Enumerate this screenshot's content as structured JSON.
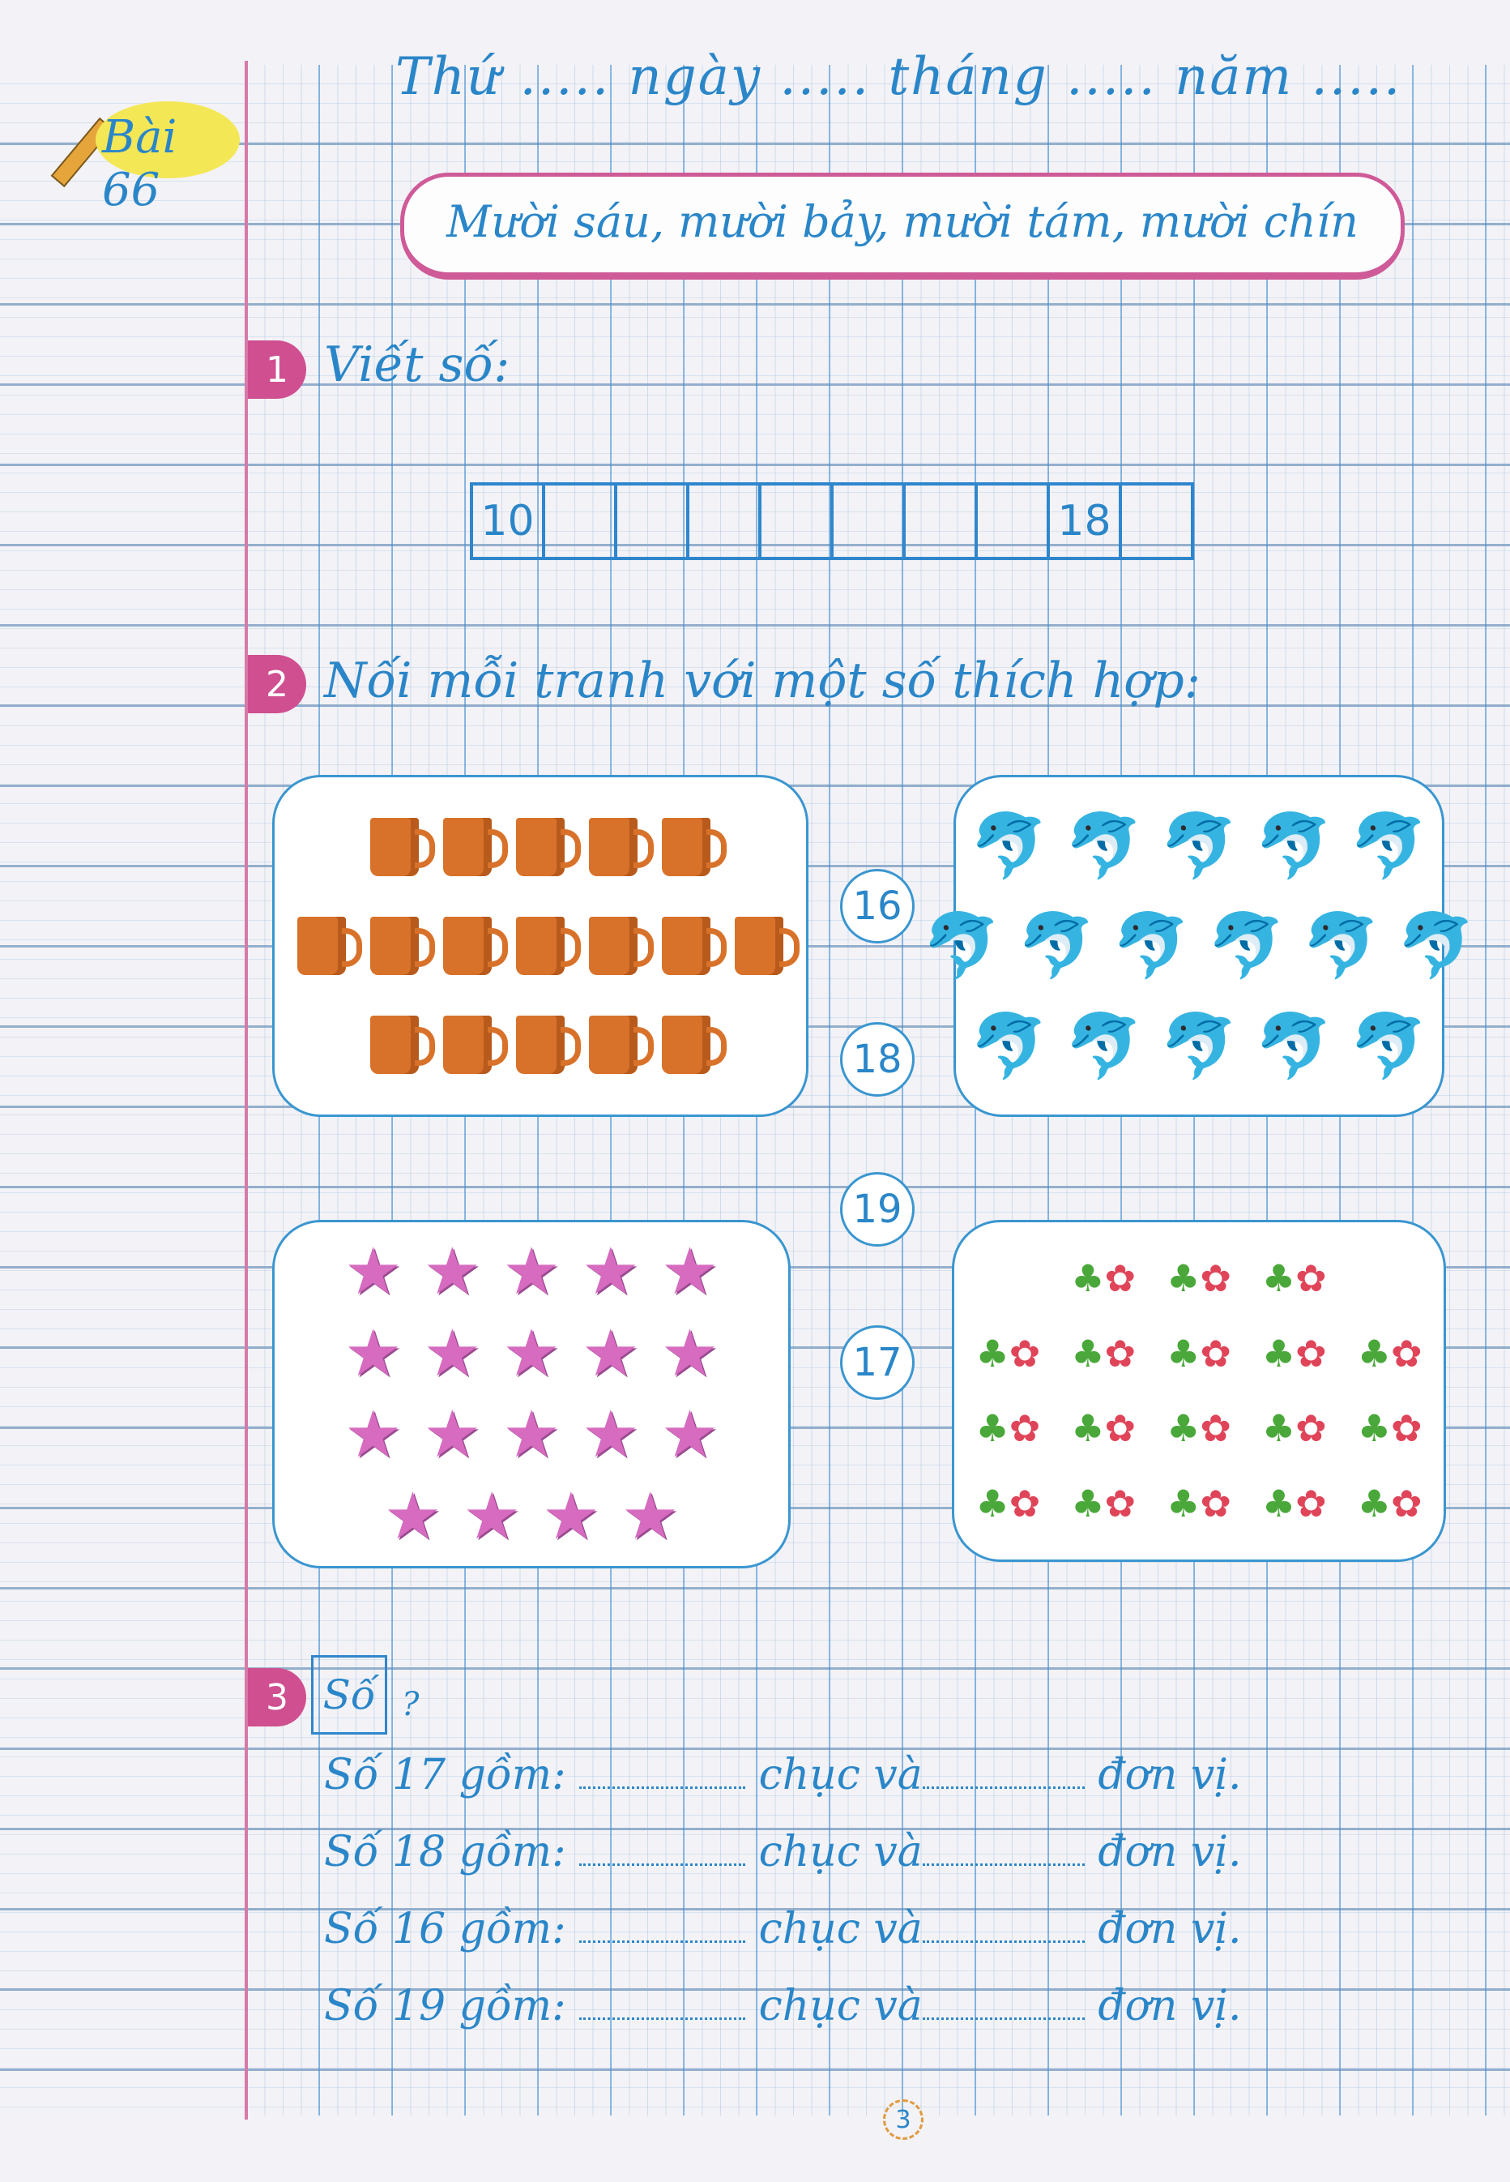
{
  "header": {
    "date_line": "Thứ ..... ngày ..... tháng ..... năm ....."
  },
  "lesson": {
    "badge": "Bài 66",
    "title": "Mười sáu, mười bảy, mười tám, mười chín"
  },
  "exercise1": {
    "number": "1",
    "instruction": "Viết số:",
    "cells": [
      "10",
      "",
      "",
      "",
      "",
      "",
      "",
      "",
      "18",
      ""
    ]
  },
  "exercise2": {
    "number": "2",
    "instruction": "Nối mỗi tranh với một số thích hợp:",
    "pictures": [
      {
        "icon": "mug-icon",
        "rows": [
          5,
          7,
          5
        ]
      },
      {
        "icon": "dolphin-icon",
        "rows": [
          5,
          6,
          5
        ]
      },
      {
        "icon": "star-icon",
        "rows": [
          5,
          5,
          5,
          4
        ]
      },
      {
        "icon": "flower-icon",
        "rows": [
          3,
          5,
          5,
          5
        ]
      }
    ],
    "numbers": [
      "16",
      "18",
      "19",
      "17"
    ]
  },
  "exercise3": {
    "number": "3",
    "boxed_word": "Số",
    "question_mark": "?",
    "rows": [
      {
        "prefix": "Số 17 gồm:",
        "middle": "chục và",
        "suffix": "đơn vị."
      },
      {
        "prefix": "Số 18 gồm:",
        "middle": "chục và",
        "suffix": "đơn vị."
      },
      {
        "prefix": "Số 16 gồm:",
        "middle": "chục và",
        "suffix": "đơn vị."
      },
      {
        "prefix": "Số 19 gồm:",
        "middle": "chục và",
        "suffix": "đơn vị."
      }
    ]
  },
  "page_number": "3",
  "colors": {
    "blue": "#2a86c8",
    "pink": "#cf4f90",
    "badge_yellow": "#f4e756"
  }
}
